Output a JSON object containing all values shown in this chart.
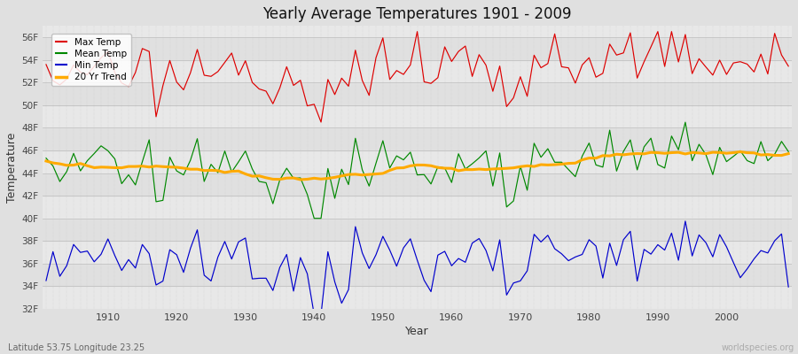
{
  "title": "Yearly Average Temperatures 1901 - 2009",
  "xlabel": "Year",
  "ylabel": "Temperature",
  "lat_lon_label": "Latitude 53.75 Longitude 23.25",
  "watermark": "worldspecies.org",
  "year_start": 1901,
  "year_end": 2009,
  "ylim_min": 32,
  "ylim_max": 57,
  "yticks": [
    32,
    34,
    36,
    38,
    40,
    42,
    44,
    46,
    48,
    50,
    52,
    54,
    56
  ],
  "ytick_labels": [
    "32F",
    "34F",
    "36F",
    "38F",
    "40F",
    "42F",
    "44F",
    "46F",
    "48F",
    "50F",
    "52F",
    "54F",
    "56F"
  ],
  "max_temp_color": "#dd0000",
  "mean_temp_color": "#008800",
  "min_temp_color": "#0000cc",
  "trend_color": "#ffaa00",
  "bg_color": "#e0e0e0",
  "plot_bg_color": "#ebebeb",
  "grid_color": "#c8c8c8",
  "legend_labels": [
    "Max Temp",
    "Mean Temp",
    "Min Temp",
    "20 Yr Trend"
  ],
  "legend_colors": [
    "#dd0000",
    "#008800",
    "#0000cc",
    "#ffaa00"
  ],
  "max_temp_base": 52.0,
  "mean_temp_base": 44.3,
  "min_temp_base": 36.5,
  "warming_trend": 1.0
}
